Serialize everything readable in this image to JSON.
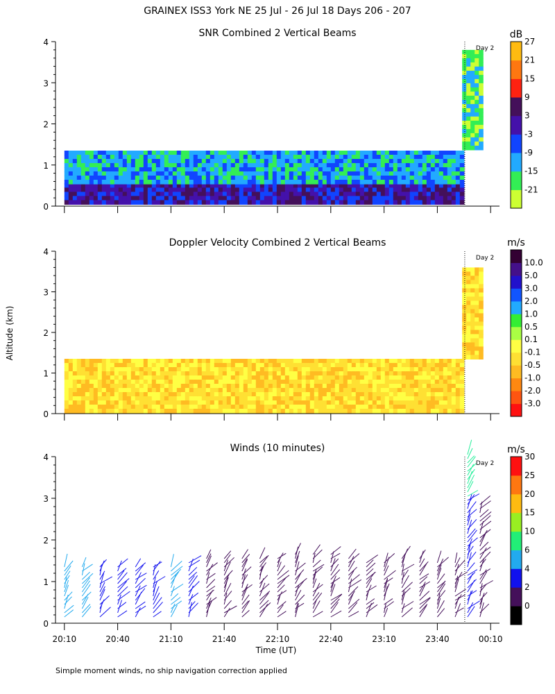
{
  "figure": {
    "title": "GRAINEX ISS3 York NE  25 Jul - 26 Jul 18 Days 206 - 207",
    "footnote": "Simple moment winds, no ship navigation correction applied",
    "y_axis_label": "Altitude (km)",
    "x_axis_label": "Time (UT)",
    "day_marker_label": "Day 2"
  },
  "chart_data": [
    {
      "type": "heatmap",
      "title": "SNR Combined 2 Vertical Beams",
      "ylabel": "Altitude (km)",
      "ylim": [
        0,
        4
      ],
      "yticks": [
        "0",
        "1",
        "2",
        "3",
        "4"
      ],
      "colorbar": {
        "unit": "dB",
        "labels": [
          "-21",
          "-15",
          "-9",
          "-3",
          "3",
          "9",
          "15",
          "21",
          "27"
        ],
        "colors": [
          "#ccff33",
          "#33ee55",
          "#22aaff",
          "#1144ff",
          "#4411aa",
          "#44105a",
          "#ff2211",
          "#ff7711",
          "#ffbb11"
        ]
      },
      "regions": [
        {
          "time_range": [
            "20:10",
            "23:54"
          ],
          "altitude_km": [
            0.05,
            0.55
          ],
          "typical_db": 3
        },
        {
          "time_range": [
            "20:10",
            "23:54"
          ],
          "altitude_km": [
            0.55,
            1.35
          ],
          "typical_db": -9
        },
        {
          "time_range": [
            "23:54",
            "00:04"
          ],
          "altitude_km": [
            1.4,
            3.8
          ],
          "typical_db": -15
        }
      ]
    },
    {
      "type": "heatmap",
      "title": "Doppler Velocity Combined 2 Vertical Beams",
      "ylabel": "Altitude (km)",
      "ylim": [
        0,
        4
      ],
      "yticks": [
        "0",
        "1",
        "2",
        "3",
        "4"
      ],
      "colorbar": {
        "unit": "m/s",
        "labels": [
          "-3.0",
          "-2.0",
          "-1.0",
          "-0.5",
          "-0.1",
          "0.1",
          "0.5",
          "1.0",
          "2.0",
          "3.0",
          "5.0",
          "10.0"
        ],
        "colors": [
          "#ff1111",
          "#ff5511",
          "#ff8811",
          "#ffbb22",
          "#ffe033",
          "#ffff44",
          "#aaff44",
          "#33ee33",
          "#22aaff",
          "#1155ff",
          "#2211cc",
          "#44108a",
          "#330033"
        ]
      },
      "regions": [
        {
          "time_range": [
            "20:10",
            "23:54"
          ],
          "altitude_km": [
            0.05,
            1.35
          ],
          "typical_ms": -0.3
        },
        {
          "time_range": [
            "23:54",
            "00:04"
          ],
          "altitude_km": [
            1.4,
            3.6
          ],
          "typical_ms": -0.2
        }
      ]
    },
    {
      "type": "scatter",
      "title": "Winds (10 minutes)",
      "ylabel": "Altitude (km)",
      "xlabel": "Time (UT)",
      "ylim": [
        0,
        4
      ],
      "yticks": [
        "0",
        "1",
        "2",
        "3",
        "4"
      ],
      "xticks": [
        "20:10",
        "20:40",
        "21:10",
        "21:40",
        "22:10",
        "22:40",
        "23:10",
        "23:40",
        "00:10"
      ],
      "colorbar": {
        "unit": "m/s",
        "labels": [
          "0",
          "2",
          "4",
          "6",
          "10",
          "15",
          "20",
          "25",
          "30"
        ],
        "colors": [
          "#000000",
          "#44105a",
          "#1111ee",
          "#22aaee",
          "#22ee77",
          "#99ee22",
          "#ffbb11",
          "#ff7711",
          "#ff1111"
        ]
      },
      "profiles": [
        {
          "time": "20:10",
          "top_km": 1.45,
          "speed_ms": 7
        },
        {
          "time": "20:20",
          "top_km": 1.45,
          "speed_ms": 7
        },
        {
          "time": "20:30",
          "top_km": 1.45,
          "speed_ms": 4
        },
        {
          "time": "20:40",
          "top_km": 1.45,
          "speed_ms": 4
        },
        {
          "time": "20:50",
          "top_km": 1.45,
          "speed_ms": 4
        },
        {
          "time": "21:00",
          "top_km": 1.45,
          "speed_ms": 4
        },
        {
          "time": "21:10",
          "top_km": 1.45,
          "speed_ms": 7
        },
        {
          "time": "21:20",
          "top_km": 1.5,
          "speed_ms": 4
        },
        {
          "time": "21:30",
          "top_km": 1.6,
          "speed_ms": 3
        },
        {
          "time": "21:40",
          "top_km": 1.6,
          "speed_ms": 3
        },
        {
          "time": "21:50",
          "top_km": 1.6,
          "speed_ms": 3
        },
        {
          "time": "22:00",
          "top_km": 1.6,
          "speed_ms": 3
        },
        {
          "time": "22:10",
          "top_km": 1.65,
          "speed_ms": 3
        },
        {
          "time": "22:20",
          "top_km": 1.7,
          "speed_ms": 3
        },
        {
          "time": "22:30",
          "top_km": 1.7,
          "speed_ms": 3
        },
        {
          "time": "22:40",
          "top_km": 1.7,
          "speed_ms": 3
        },
        {
          "time": "22:50",
          "top_km": 1.6,
          "speed_ms": 3
        },
        {
          "time": "23:00",
          "top_km": 1.5,
          "speed_ms": 3
        },
        {
          "time": "23:10",
          "top_km": 1.55,
          "speed_ms": 3
        },
        {
          "time": "23:20",
          "top_km": 1.6,
          "speed_ms": 3
        },
        {
          "time": "23:30",
          "top_km": 1.6,
          "speed_ms": 3
        },
        {
          "time": "23:40",
          "top_km": 1.5,
          "speed_ms": 3
        },
        {
          "time": "23:50",
          "top_km": 1.5,
          "speed_ms": 3
        },
        {
          "time": "23:57",
          "top_km": 4.1,
          "speed_ms": 4
        },
        {
          "time": "00:04",
          "top_km": 2.9,
          "speed_ms": 3
        }
      ]
    }
  ]
}
